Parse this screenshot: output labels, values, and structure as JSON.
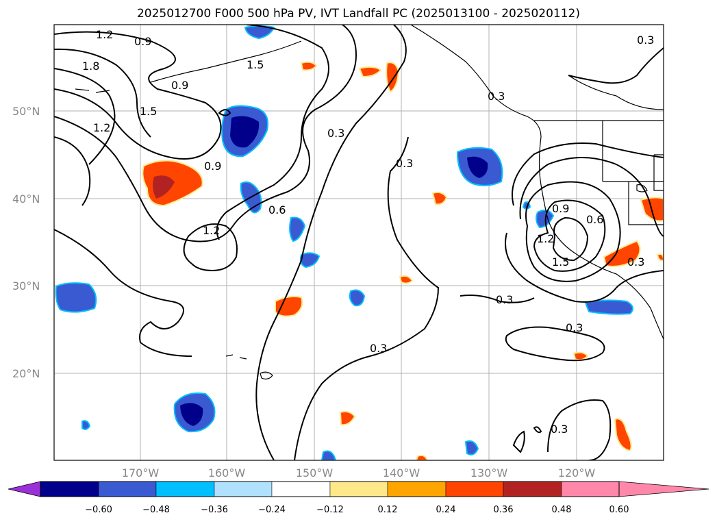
{
  "title": "2025012700 F000 500 hPa PV, IVT Landfall PC (2025013100 - 2025020112)",
  "map": {
    "lat_labels": [
      "50°N",
      "40°N",
      "30°N",
      "20°N"
    ],
    "lon_labels": [
      "170°W",
      "160°W",
      "150°W",
      "140°W",
      "130°W",
      "120°W"
    ],
    "contour_labels": [
      "1.2",
      "0.9",
      "1.8",
      "0.9",
      "1.5",
      "1.5",
      "1.2",
      "0.9",
      "0.3",
      "0.6",
      "1.2",
      "0.3",
      "0.3",
      "0.9",
      "0.6",
      "1.2",
      "1.5",
      "0.3",
      "0.3",
      "0.3",
      "0.3",
      "0.3",
      "0.3"
    ]
  },
  "colorbar": {
    "colors": [
      "#9b30d9",
      "#00008b",
      "#3a5ad1",
      "#00bfff",
      "#b0e2ff",
      "#ffffff",
      "#ffe88a",
      "#ffa500",
      "#ff4500",
      "#b22222",
      "#ff88aa"
    ],
    "labels": [
      "−0.60",
      "−0.48",
      "−0.36",
      "−0.24",
      "−0.12",
      "0.12",
      "0.24",
      "0.36",
      "0.48",
      "0.60"
    ]
  }
}
